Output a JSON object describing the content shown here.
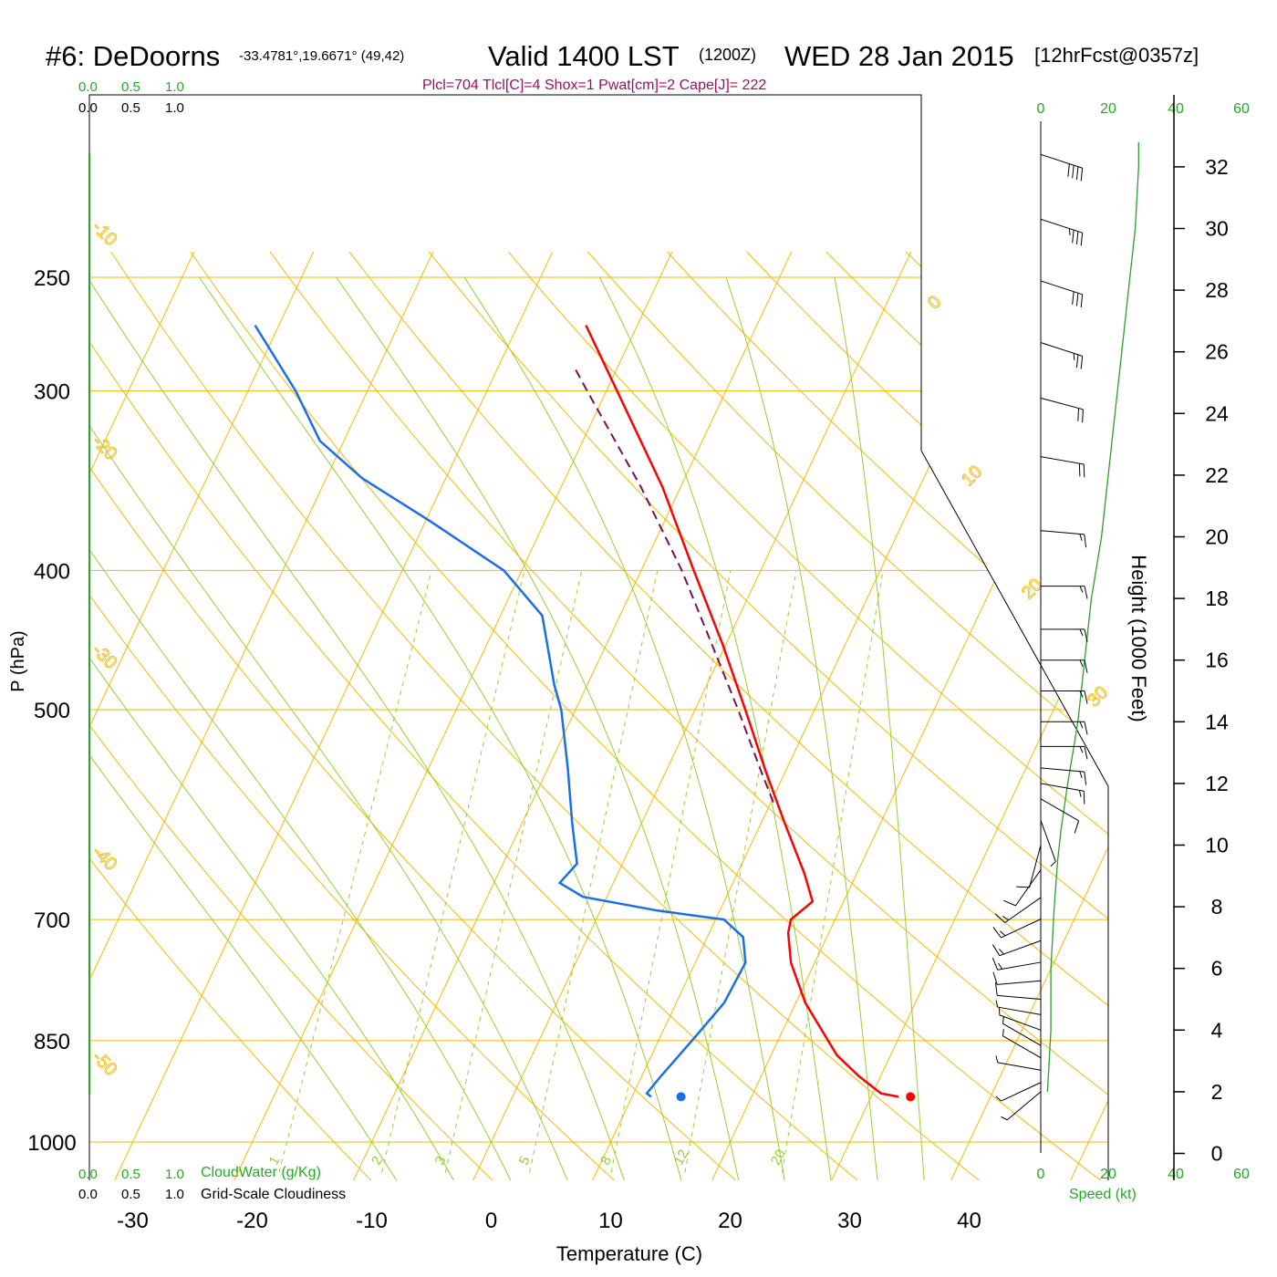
{
  "header": {
    "station": "#6: DeDoorns",
    "coords": "-33.4781°,19.6671° (49,42)",
    "valid": "Valid 1400 LST",
    "zulu": "(1200Z)",
    "date": "WED 28 Jan 2015",
    "forecast": "[12hrFcst@0357z]",
    "indices": "Plcl=704 Tlcl[C]=4 Shox=1 Pwat[cm]=2 Cape[J]= 222"
  },
  "left_scale": {
    "cloudwater_ticks": [
      "0.0",
      "0.5",
      "1.0"
    ],
    "cloudiness_ticks": [
      "0.0",
      "0.5",
      "1.0"
    ],
    "cloudwater_label": "CloudWater (g/Kg)",
    "cloudiness_label": "Grid-Scale Cloudiness"
  },
  "wind_scale": {
    "ticks": [
      "0",
      "20",
      "40",
      "60"
    ],
    "label": "Speed (kt)"
  },
  "colors": {
    "temperature": "#ff0000",
    "dewpoint": "#1a6ee8",
    "parcel": "#7a1050",
    "isotherm": "#f5b800",
    "dry_adiabat": "#f5b800",
    "moist_adiabat": "#9acd32",
    "mixing_ratio": "#9acd32",
    "wind_speed": "#2ca02c",
    "green_text": "#22aa22",
    "indices_text": "#9a1060"
  },
  "chart_data": {
    "type": "skew-t",
    "xlabel": "Temperature (C)",
    "ylabel": "P (hPa)",
    "y2label": "Height (1000 Feet)",
    "xlim": [
      -34,
      36
    ],
    "ylim_hpa": [
      1050,
      250
    ],
    "x_ticks": [
      "-30",
      "-20",
      "-10",
      "0",
      "10",
      "20",
      "30",
      "40"
    ],
    "p_ticks": [
      "250",
      "300",
      "400",
      "500",
      "700",
      "850",
      "1000"
    ],
    "height_ticks": [
      "0",
      "2",
      "4",
      "6",
      "8",
      "10",
      "12",
      "14",
      "16",
      "18",
      "20",
      "22",
      "24",
      "26",
      "28",
      "30",
      "32"
    ],
    "temperature_profile": [
      {
        "p": 930,
        "t": 32.3
      },
      {
        "p": 925,
        "t": 30.7
      },
      {
        "p": 900,
        "t": 28.2
      },
      {
        "p": 870,
        "t": 25.5
      },
      {
        "p": 850,
        "t": 24.2
      },
      {
        "p": 800,
        "t": 20.8
      },
      {
        "p": 750,
        "t": 18.0
      },
      {
        "p": 715,
        "t": 16.6
      },
      {
        "p": 700,
        "t": 16.3
      },
      {
        "p": 680,
        "t": 17.4
      },
      {
        "p": 650,
        "t": 15.6
      },
      {
        "p": 600,
        "t": 12.0
      },
      {
        "p": 550,
        "t": 8.2
      },
      {
        "p": 500,
        "t": 4.2
      },
      {
        "p": 450,
        "t": -0.3
      },
      {
        "p": 400,
        "t": -5.6
      },
      {
        "p": 350,
        "t": -11.5
      },
      {
        "p": 300,
        "t": -19.1
      },
      {
        "p": 270,
        "t": -24.3
      }
    ],
    "dewpoint_profile": [
      {
        "p": 930,
        "t": 11.6
      },
      {
        "p": 925,
        "t": 11.1
      },
      {
        "p": 900,
        "t": 11.6
      },
      {
        "p": 850,
        "t": 12.8
      },
      {
        "p": 800,
        "t": 14.0
      },
      {
        "p": 750,
        "t": 14.2
      },
      {
        "p": 720,
        "t": 13.0
      },
      {
        "p": 700,
        "t": 10.7
      },
      {
        "p": 690,
        "t": 4.8
      },
      {
        "p": 675,
        "t": -2.0
      },
      {
        "p": 660,
        "t": -4.5
      },
      {
        "p": 640,
        "t": -3.8
      },
      {
        "p": 600,
        "t": -5.8
      },
      {
        "p": 550,
        "t": -8.3
      },
      {
        "p": 500,
        "t": -11.2
      },
      {
        "p": 480,
        "t": -12.8
      },
      {
        "p": 430,
        "t": -16.5
      },
      {
        "p": 400,
        "t": -21.5
      },
      {
        "p": 370,
        "t": -29.5
      },
      {
        "p": 345,
        "t": -37.0
      },
      {
        "p": 325,
        "t": -42.0
      },
      {
        "p": 300,
        "t": -46.0
      },
      {
        "p": 270,
        "t": -52.0
      }
    ],
    "parcel_profile": [
      {
        "p": 580,
        "t": 10.2
      },
      {
        "p": 550,
        "t": 7.8
      },
      {
        "p": 500,
        "t": 3.6
      },
      {
        "p": 450,
        "t": -1.2
      },
      {
        "p": 400,
        "t": -6.6
      },
      {
        "p": 350,
        "t": -13.3
      },
      {
        "p": 300,
        "t": -21.6
      },
      {
        "p": 290,
        "t": -23.4
      }
    ],
    "surface_temperature": {
      "p": 930,
      "t": 33.3
    },
    "surface_dewpoint": {
      "p": 930,
      "t": 14.1
    },
    "isotherm_labels": [
      "30",
      "20",
      "10",
      "0",
      "-10",
      "-20",
      "-30",
      "-40",
      "-50"
    ],
    "mixing_ratio_lines": [
      1,
      2,
      3,
      5,
      8,
      12,
      20
    ],
    "mixing_ratio_labels": [
      "1",
      "2",
      "3",
      "5",
      "8",
      "12",
      "20"
    ],
    "dry_adiabats_thetaK": [
      260,
      270,
      280,
      290,
      300,
      310,
      320,
      330,
      340,
      350,
      360,
      370,
      380,
      390,
      400,
      410,
      420,
      430,
      440,
      450,
      460
    ],
    "moist_adiabats_thetawC": [
      -10,
      -5,
      0,
      5,
      10,
      15,
      20,
      24,
      28,
      32,
      36
    ],
    "winds": [
      {
        "h_kft": 2.0,
        "dir": 230,
        "spd": 4
      },
      {
        "h_kft": 2.3,
        "dir": 245,
        "spd": 5
      },
      {
        "h_kft": 2.7,
        "dir": 280,
        "spd": 4
      },
      {
        "h_kft": 3.1,
        "dir": 300,
        "spd": 4
      },
      {
        "h_kft": 3.5,
        "dir": 300,
        "spd": 5
      },
      {
        "h_kft": 4.0,
        "dir": 290,
        "spd": 6
      },
      {
        "h_kft": 4.5,
        "dir": 280,
        "spd": 7
      },
      {
        "h_kft": 5.0,
        "dir": 275,
        "spd": 9
      },
      {
        "h_kft": 5.6,
        "dir": 265,
        "spd": 11
      },
      {
        "h_kft": 6.2,
        "dir": 260,
        "spd": 13
      },
      {
        "h_kft": 6.9,
        "dir": 250,
        "spd": 13
      },
      {
        "h_kft": 7.6,
        "dir": 245,
        "spd": 14
      },
      {
        "h_kft": 8.3,
        "dir": 235,
        "spd": 13
      },
      {
        "h_kft": 9.2,
        "dir": 215,
        "spd": 10
      },
      {
        "h_kft": 10.0,
        "dir": 195,
        "spd": 8
      },
      {
        "h_kft": 10.8,
        "dir": 160,
        "spd": 7
      },
      {
        "h_kft": 11.5,
        "dir": 120,
        "spd": 10
      },
      {
        "h_kft": 12.0,
        "dir": 100,
        "spd": 14
      },
      {
        "h_kft": 12.5,
        "dir": 95,
        "spd": 15
      },
      {
        "h_kft": 13.2,
        "dir": 90,
        "spd": 16
      },
      {
        "h_kft": 14.0,
        "dir": 90,
        "spd": 16
      },
      {
        "h_kft": 15.0,
        "dir": 90,
        "spd": 16
      },
      {
        "h_kft": 16.0,
        "dir": 90,
        "spd": 15
      },
      {
        "h_kft": 17.0,
        "dir": 90,
        "spd": 15
      },
      {
        "h_kft": 18.4,
        "dir": 90,
        "spd": 15
      },
      {
        "h_kft": 20.2,
        "dir": 95,
        "spd": 16
      },
      {
        "h_kft": 22.6,
        "dir": 100,
        "spd": 18
      },
      {
        "h_kft": 24.5,
        "dir": 105,
        "spd": 21
      },
      {
        "h_kft": 26.3,
        "dir": 108,
        "spd": 24
      },
      {
        "h_kft": 28.3,
        "dir": 108,
        "spd": 28
      },
      {
        "h_kft": 30.3,
        "dir": 108,
        "spd": 34
      },
      {
        "h_kft": 32.4,
        "dir": 108,
        "spd": 38
      }
    ],
    "wind_speed_profile": [
      {
        "h_kft": 2.0,
        "spd": 2
      },
      {
        "h_kft": 4.0,
        "spd": 3
      },
      {
        "h_kft": 6.0,
        "spd": 3
      },
      {
        "h_kft": 8.0,
        "spd": 4
      },
      {
        "h_kft": 9.5,
        "spd": 5
      },
      {
        "h_kft": 10.5,
        "spd": 6
      },
      {
        "h_kft": 12.0,
        "spd": 8
      },
      {
        "h_kft": 14.0,
        "spd": 11
      },
      {
        "h_kft": 16.0,
        "spd": 13
      },
      {
        "h_kft": 18.0,
        "spd": 15
      },
      {
        "h_kft": 20.0,
        "spd": 18
      },
      {
        "h_kft": 22.0,
        "spd": 20
      },
      {
        "h_kft": 24.0,
        "spd": 22
      },
      {
        "h_kft": 26.0,
        "spd": 24
      },
      {
        "h_kft": 28.0,
        "spd": 26
      },
      {
        "h_kft": 30.0,
        "spd": 28
      },
      {
        "h_kft": 32.0,
        "spd": 29
      },
      {
        "h_kft": 32.8,
        "spd": 29
      }
    ]
  }
}
